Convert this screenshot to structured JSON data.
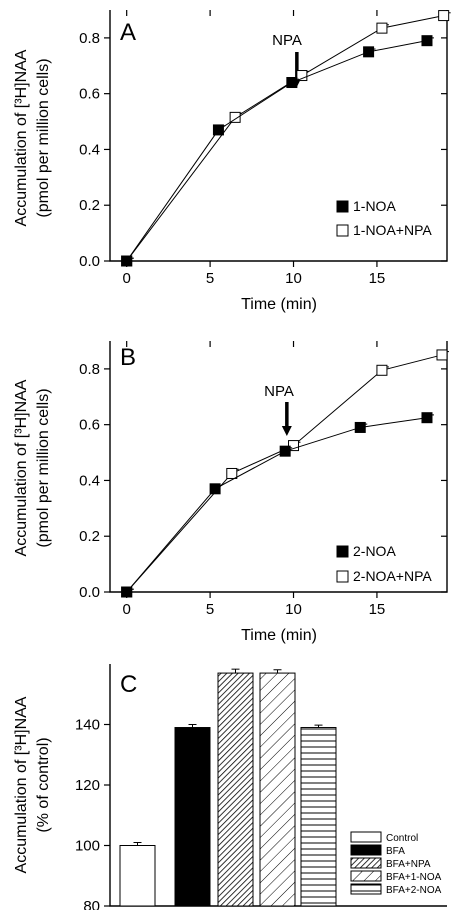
{
  "chart_data": [
    {
      "type": "line",
      "panel_label": "A",
      "ylabel_line1": "Accumulation of [³H]NAA",
      "ylabel_line2": "(pmol per million cells)",
      "xlabel": "Time (min)",
      "xlim": [
        -1,
        19.2
      ],
      "ylim": [
        0,
        0.9
      ],
      "xticks": [
        "0",
        "5",
        "10",
        "15"
      ],
      "yticks": [
        "0.0",
        "0.2",
        "0.4",
        "0.6",
        "0.8"
      ],
      "annotation": "NPA",
      "annotation_x": 10.2,
      "series": [
        {
          "name": "1-NOA",
          "style": "filled",
          "x": [
            0,
            5.5,
            9.9,
            14.5,
            18.0
          ],
          "y": [
            0,
            0.47,
            0.64,
            0.75,
            0.79
          ],
          "err": [
            0.01,
            0.015,
            0.012,
            0.01,
            0.01
          ]
        },
        {
          "name": "1-NOA+NPA",
          "style": "open",
          "x": [
            0,
            6.5,
            10.5,
            15.3,
            19.0
          ],
          "y": [
            0,
            0.515,
            0.665,
            0.835,
            0.88
          ],
          "err": [
            0.01,
            0.015,
            0.015,
            0.012,
            0.01
          ]
        }
      ]
    },
    {
      "type": "line",
      "panel_label": "B",
      "ylabel_line1": "Accumulation of [³H]NAA",
      "ylabel_line2": "(pmol per million cells)",
      "xlabel": "Time (min)",
      "xlim": [
        -1,
        19.2
      ],
      "ylim": [
        0,
        0.9
      ],
      "xticks": [
        "0",
        "5",
        "10",
        "15"
      ],
      "yticks": [
        "0.0",
        "0.2",
        "0.4",
        "0.6",
        "0.8"
      ],
      "annotation": "NPA",
      "annotation_x": 9.6,
      "series": [
        {
          "name": "2-NOA",
          "style": "filled",
          "x": [
            0,
            5.3,
            9.5,
            14.0,
            18.0
          ],
          "y": [
            0,
            0.37,
            0.505,
            0.59,
            0.625
          ],
          "err": [
            0.01,
            0.012,
            0.012,
            0.012,
            0.01
          ]
        },
        {
          "name": "2-NOA+NPA",
          "style": "open",
          "x": [
            0,
            6.3,
            10.0,
            15.3,
            18.9
          ],
          "y": [
            0,
            0.425,
            0.525,
            0.795,
            0.85
          ],
          "err": [
            0.01,
            0.015,
            0.012,
            0.012,
            0.012
          ]
        }
      ]
    },
    {
      "type": "bar",
      "panel_label": "C",
      "ylabel_line1": "Accumulation of [³H]NAA",
      "ylabel_line2": "(% of control)",
      "ylim": [
        80,
        160
      ],
      "yticks": [
        "80",
        "100",
        "120",
        "140"
      ],
      "categories": [
        "Control",
        "BFA",
        "BFA+NPA",
        "BFA+1-NOA",
        "BFA+2-NOA"
      ],
      "values": [
        100,
        139,
        157,
        157,
        139
      ],
      "errors": [
        0.5,
        0.5,
        0.8,
        0.6,
        0.3
      ],
      "fills": [
        "white",
        "black",
        "dense-diag",
        "diag",
        "horiz"
      ]
    }
  ]
}
